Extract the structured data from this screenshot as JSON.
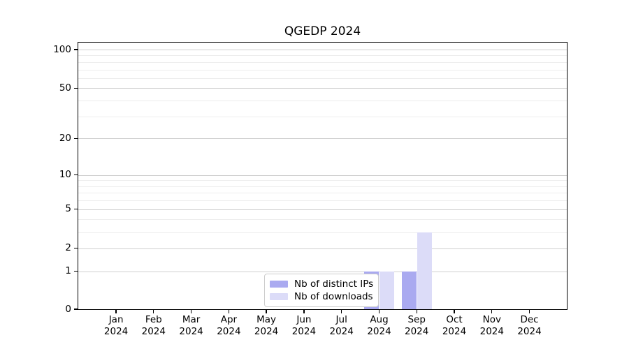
{
  "title": "QGEDP 2024",
  "legend": {
    "items": [
      {
        "label": "Nb of distinct IPs",
        "color": "#aaaaf0"
      },
      {
        "label": "Nb of downloads",
        "color": "#dcdcf8"
      }
    ]
  },
  "chart_data": {
    "type": "bar",
    "title": "QGEDP 2024",
    "categories": [
      "Jan 2024",
      "Feb 2024",
      "Mar 2024",
      "Apr 2024",
      "May 2024",
      "Jun 2024",
      "Jul 2024",
      "Aug 2024",
      "Sep 2024",
      "Oct 2024",
      "Nov 2024",
      "Dec 2024"
    ],
    "series": [
      {
        "name": "Nb of distinct IPs",
        "color": "#aaaaf0",
        "values": [
          0,
          0,
          0,
          0,
          0,
          0,
          0,
          1,
          1,
          0,
          0,
          0
        ]
      },
      {
        "name": "Nb of downloads",
        "color": "#dcdcf8",
        "values": [
          0,
          0,
          0,
          0,
          0,
          0,
          0,
          1,
          3,
          0,
          0,
          0
        ]
      }
    ],
    "xlabel": "",
    "ylabel": "",
    "y_scale": "log1p",
    "y_ticks": [
      0,
      1,
      2,
      5,
      10,
      20,
      50,
      100
    ],
    "y_minor_gridlines": [
      3,
      4,
      6,
      7,
      8,
      9,
      30,
      40,
      60,
      70,
      80,
      90
    ],
    "ylim": [
      0,
      114
    ],
    "grid": true,
    "legend_position": "lower center"
  }
}
